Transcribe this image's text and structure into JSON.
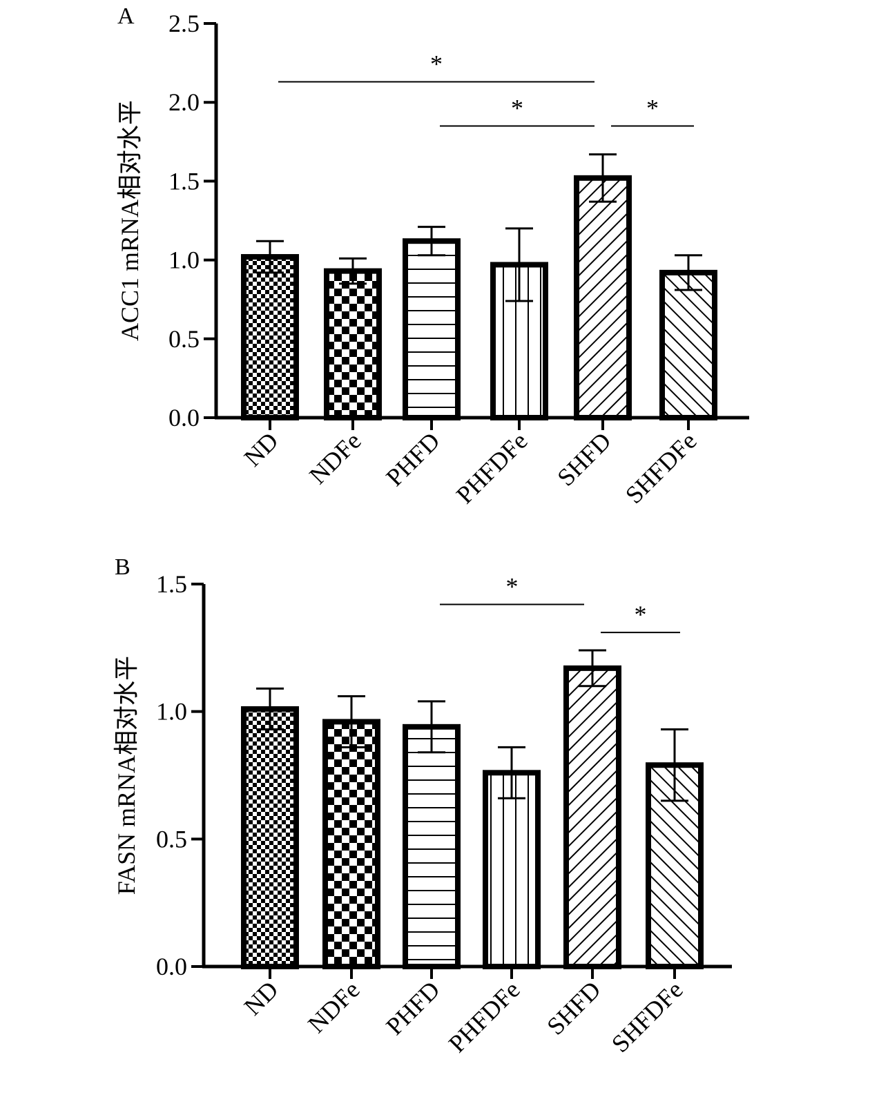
{
  "chart_data": [
    {
      "panel": "A",
      "type": "bar",
      "categories": [
        "ND",
        "NDFe",
        "PHFD",
        "PHFDFe",
        "SHFD",
        "SHFDFe"
      ],
      "values": [
        1.02,
        0.93,
        1.12,
        0.97,
        1.52,
        0.92
      ],
      "errors": [
        0.1,
        0.08,
        0.09,
        0.23,
        0.15,
        0.11
      ],
      "patterns": [
        "fine-checker",
        "checker",
        "horizontal",
        "vertical",
        "diagonal-up",
        "diagonal-down"
      ],
      "ylabel": "ACC1 mRNA相对水平",
      "ylim": [
        0,
        2.5
      ],
      "yticks": [
        0.0,
        0.5,
        1.0,
        1.5,
        2.0,
        2.5
      ],
      "ytick_labels": [
        "0.0",
        "0.5",
        "1.0",
        "1.5",
        "2.0",
        "2.5"
      ],
      "significance": [
        {
          "from": "ND",
          "to": "SHFD",
          "level": 2.13,
          "label": "*"
        },
        {
          "from": "PHFD",
          "to": "SHFD",
          "level": 1.85,
          "label": "*"
        },
        {
          "from": "SHFD",
          "to": "SHFDFe",
          "level": 1.85,
          "label": "*"
        }
      ]
    },
    {
      "panel": "B",
      "type": "bar",
      "categories": [
        "ND",
        "NDFe",
        "PHFD",
        "PHFDFe",
        "SHFD",
        "SHFDFe"
      ],
      "values": [
        1.01,
        0.96,
        0.94,
        0.76,
        1.17,
        0.79
      ],
      "errors": [
        0.08,
        0.1,
        0.1,
        0.1,
        0.07,
        0.14
      ],
      "patterns": [
        "fine-checker",
        "checker",
        "horizontal",
        "vertical",
        "diagonal-up",
        "diagonal-down"
      ],
      "ylabel": "FASN mRNA相对水平",
      "ylim": [
        0,
        1.5
      ],
      "yticks": [
        0.0,
        0.5,
        1.0,
        1.5
      ],
      "ytick_labels": [
        "0.0",
        "0.5",
        "1.0",
        "1.5"
      ],
      "significance": [
        {
          "from": "PHFD",
          "to": "SHFD",
          "level": 1.42,
          "label": "*"
        },
        {
          "from": "SHFD",
          "to": "SHFDFe",
          "level": 1.31,
          "label": "*"
        }
      ]
    }
  ],
  "colors": {
    "ink": "#000000",
    "background": "#ffffff"
  }
}
